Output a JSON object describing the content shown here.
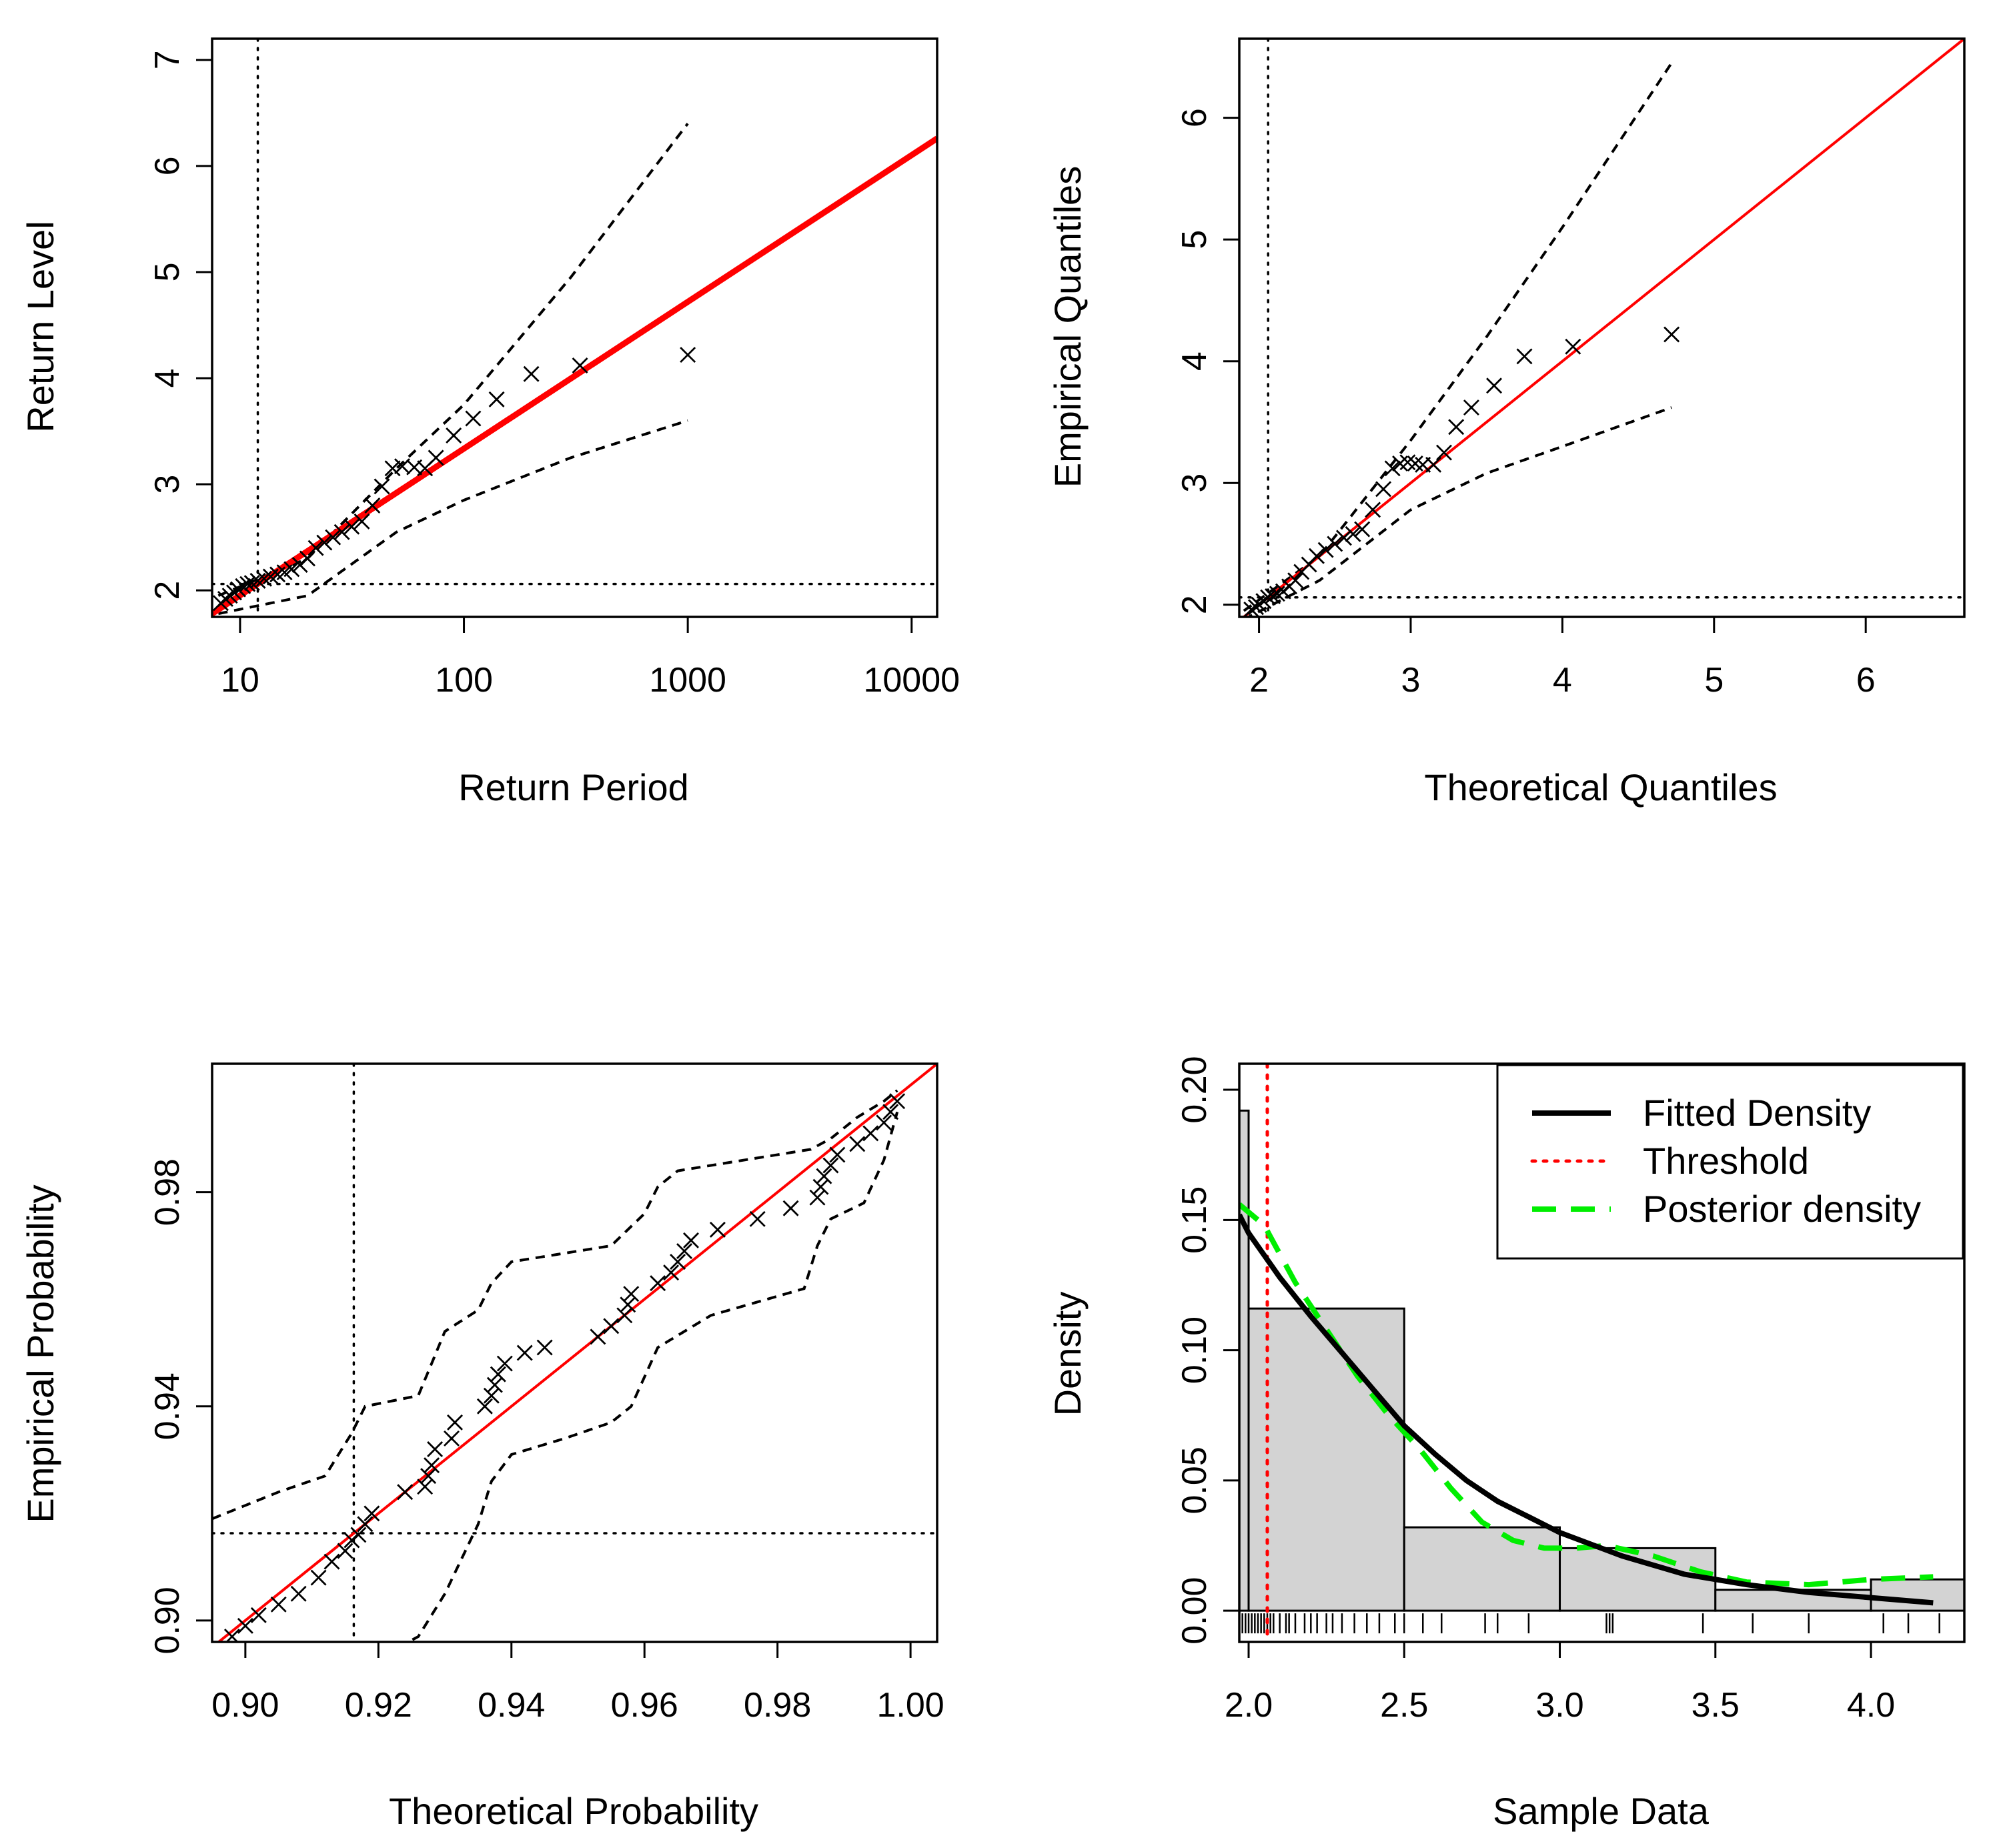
{
  "colors": {
    "fit_line": "#ff0000",
    "ci": "#000000",
    "points": "#000000",
    "threshold": "#ff0000",
    "posterior": "#00ee00",
    "density": "#000000",
    "bars_fill": "#d3d3d3"
  },
  "chart_data": [
    {
      "type": "scatter",
      "panel": "return-level",
      "xlabel": "Return Period",
      "ylabel": "Return Level",
      "x_scale": "log10",
      "xlim": [
        7.5,
        13000
      ],
      "ylim": [
        1.75,
        7.2
      ],
      "x_ticks": [
        10,
        100,
        1000,
        10000
      ],
      "x_tick_labels": [
        "10",
        "100",
        "1000",
        "10000"
      ],
      "y_ticks": [
        2,
        3,
        4,
        5,
        6,
        7
      ],
      "y_tick_labels": [
        "2",
        "3",
        "4",
        "5",
        "6",
        "7"
      ],
      "threshold_x": 12,
      "threshold_y": 2.06,
      "fit_line": {
        "x": [
          7.5,
          13000
        ],
        "y": [
          1.78,
          6.26
        ]
      },
      "ci_upper": {
        "x": [
          8,
          20,
          50,
          100,
          300,
          1000
        ],
        "y": [
          1.95,
          2.3,
          3.15,
          3.75,
          4.95,
          6.4
        ]
      },
      "ci_lower": {
        "x": [
          8,
          20,
          50,
          100,
          300,
          1000
        ],
        "y": [
          1.78,
          1.95,
          2.55,
          2.85,
          3.25,
          3.6
        ]
      },
      "points": {
        "x": [
          8.2,
          8.6,
          9.0,
          9.4,
          9.8,
          10.3,
          10.8,
          11.3,
          12.0,
          12.8,
          13.7,
          14.7,
          15.8,
          17.0,
          18.5,
          20.0,
          21.8,
          23.8,
          26.0,
          28.5,
          31.5,
          35.0,
          39.0,
          43.0,
          48.0,
          53.0,
          60.0,
          67.0,
          75.0,
          90.0,
          110.0,
          140.0,
          200.0,
          330.0,
          1000.0
        ],
        "y": [
          1.88,
          1.92,
          1.95,
          1.98,
          2.01,
          2.04,
          2.06,
          2.07,
          2.09,
          2.11,
          2.13,
          2.15,
          2.17,
          2.2,
          2.24,
          2.3,
          2.4,
          2.45,
          2.5,
          2.55,
          2.6,
          2.65,
          2.8,
          2.98,
          3.15,
          3.17,
          3.16,
          3.15,
          3.25,
          3.46,
          3.62,
          3.8,
          4.04,
          4.12,
          4.22
        ]
      }
    },
    {
      "type": "scatter",
      "panel": "qq",
      "xlabel": "Theoretical Quantiles",
      "ylabel": "Empirical Quantiles",
      "xlim": [
        1.87,
        6.65
      ],
      "ylim": [
        1.9,
        6.65
      ],
      "x_ticks": [
        2,
        3,
        4,
        5,
        6
      ],
      "x_tick_labels": [
        "2",
        "3",
        "4",
        "5",
        "6"
      ],
      "y_ticks": [
        2,
        3,
        4,
        5,
        6
      ],
      "y_tick_labels": [
        "2",
        "3",
        "4",
        "5",
        "6"
      ],
      "threshold_x": 2.06,
      "threshold_y": 2.06,
      "fit_line": {
        "x": [
          1.87,
          6.65
        ],
        "y": [
          1.87,
          6.65
        ]
      },
      "ci_upper": {
        "x": [
          1.9,
          2.4,
          3.0,
          3.5,
          4.0,
          4.72
        ],
        "y": [
          1.95,
          2.4,
          3.35,
          4.2,
          5.1,
          6.45
        ]
      },
      "ci_lower": {
        "x": [
          1.9,
          2.4,
          3.0,
          3.5,
          4.0,
          4.72
        ],
        "y": [
          1.88,
          2.2,
          2.78,
          3.08,
          3.3,
          3.62
        ]
      },
      "points": {
        "x": [
          1.95,
          1.98,
          2.0,
          2.03,
          2.06,
          2.09,
          2.12,
          2.16,
          2.2,
          2.24,
          2.28,
          2.33,
          2.38,
          2.44,
          2.5,
          2.56,
          2.62,
          2.68,
          2.75,
          2.82,
          2.88,
          2.93,
          2.98,
          3.03,
          3.08,
          3.15,
          3.22,
          3.3,
          3.4,
          3.55,
          3.75,
          4.07,
          4.72
        ],
        "y": [
          1.96,
          1.98,
          2.0,
          2.03,
          2.06,
          2.07,
          2.09,
          2.11,
          2.15,
          2.2,
          2.27,
          2.33,
          2.4,
          2.45,
          2.5,
          2.55,
          2.58,
          2.62,
          2.78,
          2.95,
          3.12,
          3.16,
          3.17,
          3.16,
          3.15,
          3.15,
          3.25,
          3.46,
          3.62,
          3.8,
          4.04,
          4.12,
          4.22
        ]
      }
    },
    {
      "type": "scatter",
      "panel": "pp",
      "xlabel": "Theoretical Probability",
      "ylabel": "Empirical Probability",
      "xlim": [
        0.895,
        1.004
      ],
      "ylim": [
        0.896,
        1.004
      ],
      "x_ticks": [
        0.9,
        0.92,
        0.94,
        0.96,
        0.98,
        1.0
      ],
      "x_tick_labels": [
        "0.90",
        "0.92",
        "0.94",
        "0.96",
        "0.98",
        "1.00"
      ],
      "y_ticks": [
        0.9,
        0.94,
        0.98
      ],
      "y_tick_labels": [
        "0.90",
        "0.94",
        "0.98"
      ],
      "threshold_x": 0.9163,
      "threshold_y": 0.9163,
      "fit_line": {
        "x": [
          0.895,
          1.004
        ],
        "y": [
          0.895,
          1.004
        ]
      },
      "ci_upper": {
        "x": [
          0.895,
          0.905,
          0.912,
          0.916,
          0.918,
          0.926,
          0.928,
          0.93,
          0.935,
          0.937,
          0.94,
          0.955,
          0.96,
          0.962,
          0.965,
          0.97,
          0.985,
          0.988,
          0.992,
          0.996,
          0.998
        ],
        "y": [
          0.919,
          0.924,
          0.927,
          0.935,
          0.94,
          0.942,
          0.948,
          0.954,
          0.958,
          0.963,
          0.967,
          0.97,
          0.976,
          0.981,
          0.984,
          0.985,
          0.988,
          0.99,
          0.994,
          0.997,
          0.999
        ]
      },
      "ci_lower": {
        "x": [
          0.923,
          0.926,
          0.93,
          0.935,
          0.937,
          0.94,
          0.948,
          0.955,
          0.958,
          0.962,
          0.97,
          0.984,
          0.986,
          0.988,
          0.993,
          0.996,
          0.998
        ],
        "y": [
          0.895,
          0.897,
          0.905,
          0.918,
          0.926,
          0.931,
          0.934,
          0.937,
          0.94,
          0.951,
          0.957,
          0.962,
          0.97,
          0.975,
          0.978,
          0.986,
          0.995
        ]
      },
      "points": {
        "x": [
          0.898,
          0.9,
          0.902,
          0.905,
          0.908,
          0.911,
          0.913,
          0.915,
          0.916,
          0.917,
          0.918,
          0.919,
          0.924,
          0.927,
          0.9275,
          0.928,
          0.9285,
          0.931,
          0.9315,
          0.936,
          0.937,
          0.9375,
          0.938,
          0.939,
          0.942,
          0.945,
          0.953,
          0.955,
          0.957,
          0.9575,
          0.958,
          0.962,
          0.964,
          0.965,
          0.966,
          0.967,
          0.971,
          0.977,
          0.982,
          0.986,
          0.9865,
          0.987,
          0.988,
          0.989,
          0.992,
          0.994,
          0.996,
          0.997,
          0.998
        ],
        "y": [
          0.897,
          0.899,
          0.901,
          0.903,
          0.905,
          0.908,
          0.911,
          0.913,
          0.915,
          0.916,
          0.918,
          0.92,
          0.924,
          0.925,
          0.927,
          0.929,
          0.932,
          0.934,
          0.937,
          0.94,
          0.942,
          0.944,
          0.946,
          0.948,
          0.95,
          0.951,
          0.953,
          0.955,
          0.957,
          0.959,
          0.961,
          0.963,
          0.965,
          0.967,
          0.969,
          0.971,
          0.973,
          0.975,
          0.977,
          0.979,
          0.981,
          0.983,
          0.985,
          0.987,
          0.989,
          0.991,
          0.993,
          0.995,
          0.997
        ]
      }
    },
    {
      "type": "bar",
      "panel": "density",
      "xlabel": "Sample Data",
      "ylabel": "Density",
      "xlim": [
        1.97,
        4.3
      ],
      "ylim": [
        -0.012,
        0.21
      ],
      "x_ticks": [
        2.0,
        2.5,
        3.0,
        3.5,
        4.0
      ],
      "x_tick_labels": [
        "2.0",
        "2.5",
        "3.0",
        "3.5",
        "4.0"
      ],
      "y_ticks": [
        0.0,
        0.05,
        0.1,
        0.15,
        0.2
      ],
      "y_tick_labels": [
        "0.00",
        "0.05",
        "0.10",
        "0.15",
        "0.20"
      ],
      "bins": [
        {
          "x0": 1.965,
          "x1": 2.0,
          "value": 0.192
        },
        {
          "x0": 2.0,
          "x1": 2.5,
          "value": 0.116
        },
        {
          "x0": 2.5,
          "x1": 3.0,
          "value": 0.032
        },
        {
          "x0": 3.0,
          "x1": 3.5,
          "value": 0.024
        },
        {
          "x0": 3.5,
          "x1": 4.0,
          "value": 0.008
        },
        {
          "x0": 4.0,
          "x1": 4.3,
          "value": 0.012
        }
      ],
      "threshold_x": 2.06,
      "fitted_density": {
        "x": [
          1.97,
          2.0,
          2.1,
          2.2,
          2.3,
          2.4,
          2.5,
          2.6,
          2.7,
          2.8,
          2.9,
          3.0,
          3.2,
          3.4,
          3.6,
          3.8,
          4.0,
          4.2
        ],
        "y": [
          0.152,
          0.145,
          0.128,
          0.113,
          0.099,
          0.085,
          0.071,
          0.06,
          0.05,
          0.042,
          0.036,
          0.03,
          0.021,
          0.014,
          0.01,
          0.007,
          0.005,
          0.003
        ]
      },
      "posterior_density": {
        "x": [
          1.97,
          2.05,
          2.15,
          2.25,
          2.35,
          2.45,
          2.55,
          2.65,
          2.75,
          2.85,
          2.95,
          3.05,
          3.15,
          3.3,
          3.45,
          3.6,
          3.8,
          4.0,
          4.2
        ],
        "y": [
          0.156,
          0.148,
          0.126,
          0.108,
          0.09,
          0.075,
          0.062,
          0.047,
          0.034,
          0.027,
          0.024,
          0.024,
          0.025,
          0.021,
          0.015,
          0.011,
          0.01,
          0.012,
          0.013
        ]
      },
      "rug": [
        1.98,
        1.99,
        2.0,
        2.01,
        2.02,
        2.03,
        2.04,
        2.05,
        2.06,
        2.07,
        2.08,
        2.1,
        2.12,
        2.13,
        2.15,
        2.18,
        2.2,
        2.22,
        2.25,
        2.27,
        2.3,
        2.34,
        2.38,
        2.42,
        2.47,
        2.5,
        2.56,
        2.62,
        2.76,
        2.8,
        2.9,
        3.15,
        3.16,
        3.17,
        3.46,
        3.62,
        3.8,
        4.04,
        4.12,
        4.22
      ],
      "legend": {
        "position": "top-right",
        "entries": [
          {
            "label": "Fitted Density",
            "style": "solid"
          },
          {
            "label": "Threshold",
            "style": "dotted"
          },
          {
            "label": "Posterior density",
            "style": "dashed"
          }
        ]
      }
    }
  ]
}
